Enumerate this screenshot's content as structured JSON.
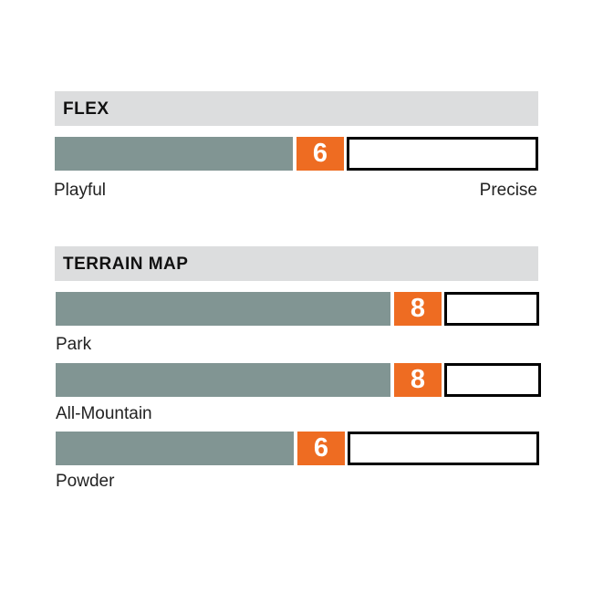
{
  "colors": {
    "fill": "#819593",
    "accent": "#ee6c22",
    "header_bg": "#dcddde"
  },
  "chart_data": [
    {
      "type": "bar",
      "title": "FLEX",
      "scale_max": 10,
      "categories": [
        "Flex"
      ],
      "values": [
        6
      ],
      "left_label": "Playful",
      "right_label": "Precise"
    },
    {
      "type": "bar",
      "title": "TERRAIN MAP",
      "scale_max": 10,
      "categories": [
        "Park",
        "All-Mountain",
        "Powder"
      ],
      "values": [
        8,
        8,
        6
      ]
    }
  ]
}
